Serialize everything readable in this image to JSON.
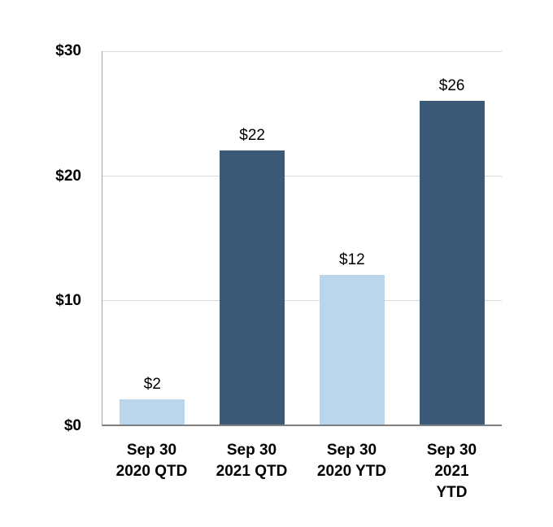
{
  "chart_data": {
    "type": "bar",
    "title": "",
    "xlabel": "",
    "ylabel": "",
    "categories": [
      "Sep 30\n2020 QTD",
      "Sep 30\n2021 QTD",
      "Sep 30\n2020 YTD",
      "Sep 30\n2021 YTD"
    ],
    "values": [
      2,
      22,
      12,
      26
    ],
    "value_labels": [
      "$2",
      "$22",
      "$12",
      "$26"
    ],
    "bar_colors": [
      "#BBD6EA",
      "#3B5A78",
      "#BBD6EA",
      "#3B5A78"
    ],
    "ylim": [
      0,
      30
    ],
    "yticks": [
      {
        "label": "$0",
        "value": 0
      },
      {
        "label": "$10",
        "value": 10
      },
      {
        "label": "$20",
        "value": 20
      },
      {
        "label": "$30",
        "value": 30
      }
    ],
    "grid": true,
    "legend": "none",
    "colors": {
      "light_blue": "#BBD6EA",
      "dark_blue": "#3B5A78",
      "gridline": "#D9D9D9",
      "x_axis_line": "#7F7F7F",
      "y_axis_line": "#A6A6A6",
      "text": "#000000",
      "background": "#FFFFFF"
    }
  }
}
